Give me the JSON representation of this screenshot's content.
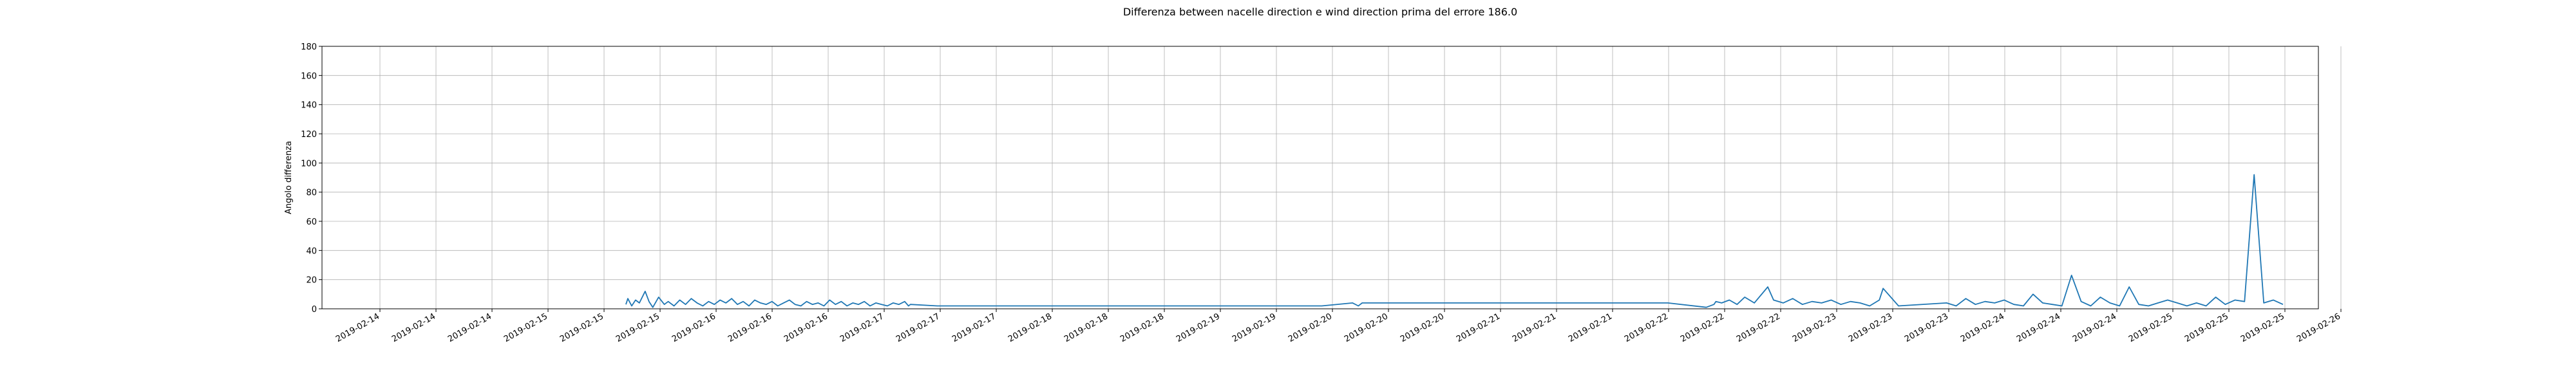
{
  "chart_data": {
    "type": "line",
    "title": "Differenza between nacelle direction e wind direction prima del errore 186.0",
    "xlabel": "",
    "ylabel": "Angolo differenza",
    "ylim": [
      0,
      180
    ],
    "y_ticks": [
      0,
      20,
      40,
      60,
      80,
      100,
      120,
      140,
      160,
      180
    ],
    "xlim": [
      0,
      1
    ],
    "x_tick_labels": [
      "2019-02-14",
      "2019-02-14",
      "2019-02-14",
      "2019-02-15",
      "2019-02-15",
      "2019-02-15",
      "2019-02-16",
      "2019-02-16",
      "2019-02-16",
      "2019-02-17",
      "2019-02-17",
      "2019-02-17",
      "2019-02-18",
      "2019-02-18",
      "2019-02-18",
      "2019-02-19",
      "2019-02-19",
      "2019-02-20",
      "2019-02-20",
      "2019-02-20",
      "2019-02-21",
      "2019-02-21",
      "2019-02-21",
      "2019-02-22",
      "2019-02-22",
      "2019-02-22",
      "2019-02-23",
      "2019-02-23",
      "2019-02-23",
      "2019-02-24",
      "2019-02-24",
      "2019-02-24",
      "2019-02-25",
      "2019-02-25",
      "2019-02-25",
      "2019-02-26"
    ],
    "grid": true,
    "line_color": "#1f77b4",
    "series": [
      {
        "x": [
          0.138,
          0.139,
          0.141,
          0.143,
          0.145,
          0.148,
          0.15,
          0.152,
          0.155,
          0.158,
          0.16,
          0.163,
          0.166,
          0.169,
          0.172,
          0.175,
          0.178,
          0.181,
          0.184,
          0.187,
          0.19,
          0.193,
          0.196,
          0.199,
          0.202,
          0.205,
          0.208,
          0.211,
          0.214,
          0.217,
          0.22,
          0.223,
          0.226,
          0.229,
          0.232,
          0.235,
          0.238,
          0.241,
          0.244,
          0.247,
          0.25,
          0.253,
          0.256,
          0.259,
          0.262,
          0.265,
          0.268,
          0.271,
          0.274,
          0.277,
          0.28,
          0.283,
          0.285,
          0.286,
          0.3,
          0.36,
          0.42,
          0.5,
          0.516,
          0.519,
          0.52,
          0.521,
          0.6,
          0.68,
          0.7,
          0.704,
          0.705,
          0.708,
          0.712,
          0.716,
          0.72,
          0.725,
          0.732,
          0.735,
          0.74,
          0.745,
          0.75,
          0.755,
          0.76,
          0.765,
          0.77,
          0.775,
          0.78,
          0.785,
          0.79,
          0.792,
          0.8,
          0.825,
          0.83,
          0.835,
          0.84,
          0.845,
          0.85,
          0.855,
          0.86,
          0.865,
          0.87,
          0.875,
          0.88,
          0.885,
          0.89,
          0.895,
          0.9,
          0.905,
          0.91,
          0.915,
          0.92,
          0.925,
          0.93,
          0.935,
          0.94,
          0.945,
          0.95,
          0.955,
          0.96,
          0.965,
          0.97,
          0.975,
          0.98,
          0.985,
          0.99,
          0.995,
          1.0
        ],
        "y": [
          3,
          7,
          2,
          6,
          4,
          12,
          5,
          1,
          8,
          3,
          5,
          2,
          6,
          3,
          7,
          4,
          2,
          5,
          3,
          6,
          4,
          7,
          3,
          5,
          2,
          6,
          4,
          3,
          5,
          2,
          4,
          6,
          3,
          2,
          5,
          3,
          4,
          2,
          6,
          3,
          5,
          2,
          4,
          3,
          5,
          2,
          4,
          3,
          2,
          4,
          3,
          5,
          2,
          3,
          2,
          2,
          2,
          2,
          4,
          2,
          3,
          4,
          4,
          4,
          1,
          3,
          5,
          4,
          6,
          3,
          8,
          4,
          15,
          6,
          4,
          7,
          3,
          5,
          4,
          6,
          3,
          5,
          4,
          2,
          6,
          14,
          2,
          4,
          2,
          7,
          3,
          5,
          4,
          6,
          3,
          2,
          10,
          4,
          3,
          2,
          23,
          5,
          2,
          8,
          4,
          2,
          15,
          3,
          2,
          4,
          6,
          4,
          2,
          4,
          2,
          8,
          3,
          6,
          5,
          92,
          4,
          6,
          3
        ]
      }
    ]
  }
}
